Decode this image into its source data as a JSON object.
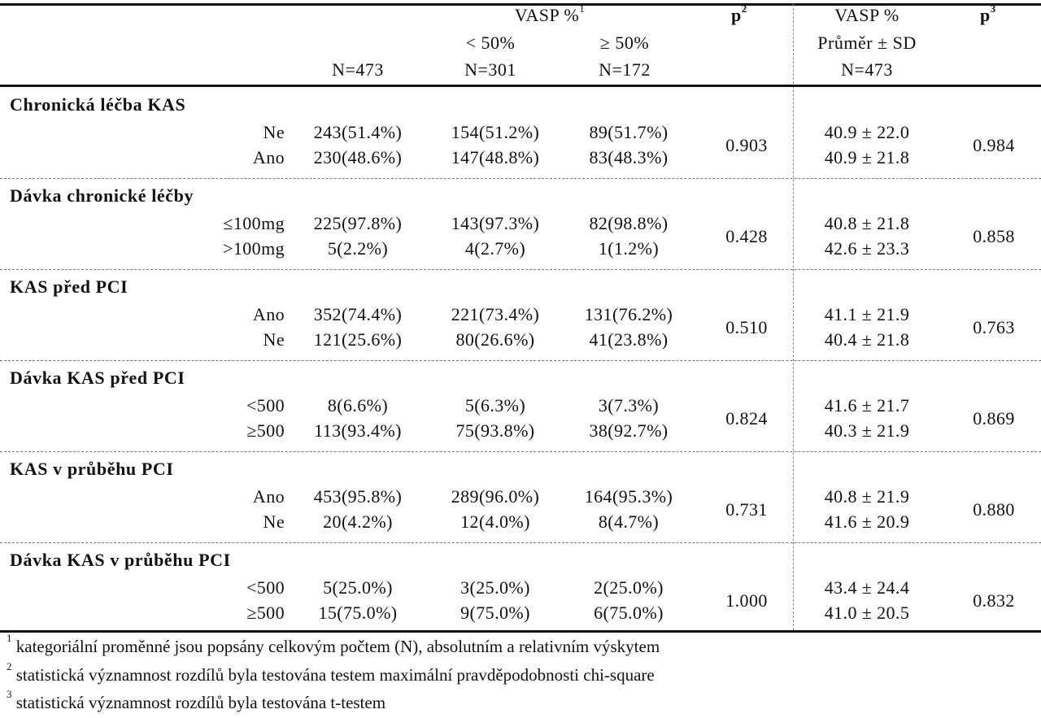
{
  "header": {
    "vasp_group": "VASP %",
    "vasp_group_sup": "1",
    "p2": "p",
    "p2_sup": "2",
    "vasp_mean_title": "VASP %",
    "vasp_mean_sub": "Průměr ± SD",
    "p3": "p",
    "p3_sup": "3",
    "lt50": "< 50%",
    "ge50": "≥ 50%",
    "n_total": "N=473",
    "n_lt50": "N=301",
    "n_ge50": "N=172",
    "n_mean": "N=473"
  },
  "sections": [
    {
      "title": "Chronická léčba KAS",
      "p2": "0.903",
      "p3": "0.984",
      "rows": [
        {
          "label": "Ne",
          "total": "243(51.4%)",
          "lt50": "154(51.2%)",
          "ge50": "89(51.7%)",
          "mean": "40.9 ± 22.0"
        },
        {
          "label": "Ano",
          "total": "230(48.6%)",
          "lt50": "147(48.8%)",
          "ge50": "83(48.3%)",
          "mean": "40.9 ± 21.8"
        }
      ]
    },
    {
      "title": "Dávka chronické léčby",
      "p2": "0.428",
      "p3": "0.858",
      "rows": [
        {
          "label": "≤100mg",
          "total": "225(97.8%)",
          "lt50": "143(97.3%)",
          "ge50": "82(98.8%)",
          "mean": "40.8 ± 21.8"
        },
        {
          "label": ">100mg",
          "total": "5(2.2%)",
          "lt50": "4(2.7%)",
          "ge50": "1(1.2%)",
          "mean": "42.6 ± 23.3"
        }
      ]
    },
    {
      "title": "KAS před PCI",
      "p2": "0.510",
      "p3": "0.763",
      "rows": [
        {
          "label": "Ano",
          "total": "352(74.4%)",
          "lt50": "221(73.4%)",
          "ge50": "131(76.2%)",
          "mean": "41.1 ± 21.9"
        },
        {
          "label": "Ne",
          "total": "121(25.6%)",
          "lt50": "80(26.6%)",
          "ge50": "41(23.8%)",
          "mean": "40.4 ± 21.8"
        }
      ]
    },
    {
      "title": "Dávka KAS před PCI",
      "p2": "0.824",
      "p3": "0.869",
      "rows": [
        {
          "label": "<500",
          "total": "8(6.6%)",
          "lt50": "5(6.3%)",
          "ge50": "3(7.3%)",
          "mean": "41.6 ± 21.7"
        },
        {
          "label": "≥500",
          "total": "113(93.4%)",
          "lt50": "75(93.8%)",
          "ge50": "38(92.7%)",
          "mean": "40.3 ± 21.9"
        }
      ]
    },
    {
      "title": "KAS v průběhu PCI",
      "p2": "0.731",
      "p3": "0.880",
      "rows": [
        {
          "label": "Ano",
          "total": "453(95.8%)",
          "lt50": "289(96.0%)",
          "ge50": "164(95.3%)",
          "mean": "40.8 ± 21.9"
        },
        {
          "label": "Ne",
          "total": "20(4.2%)",
          "lt50": "12(4.0%)",
          "ge50": "8(4.7%)",
          "mean": "41.6 ± 20.9"
        }
      ]
    },
    {
      "title": "Dávka KAS v průběhu PCI",
      "p2": "1.000",
      "p3": "0.832",
      "rows": [
        {
          "label": "<500",
          "total": "5(25.0%)",
          "lt50": "3(25.0%)",
          "ge50": "2(25.0%)",
          "mean": "43.4 ± 24.4"
        },
        {
          "label": "≥500",
          "total": "15(75.0%)",
          "lt50": "9(75.0%)",
          "ge50": "6(75.0%)",
          "mean": "41.0 ± 20.5"
        }
      ]
    }
  ],
  "footnotes": [
    {
      "mark": "1",
      "text": "kategoriální proměnné jsou popsány celkovým počtem (N), absolutním a relativním výskytem"
    },
    {
      "mark": "2",
      "text": "statistická významnost rozdílů byla testována testem maximální pravděpodobnosti chi-square"
    },
    {
      "mark": "3",
      "text": "statistická významnost rozdílů byla testována t-testem"
    }
  ]
}
